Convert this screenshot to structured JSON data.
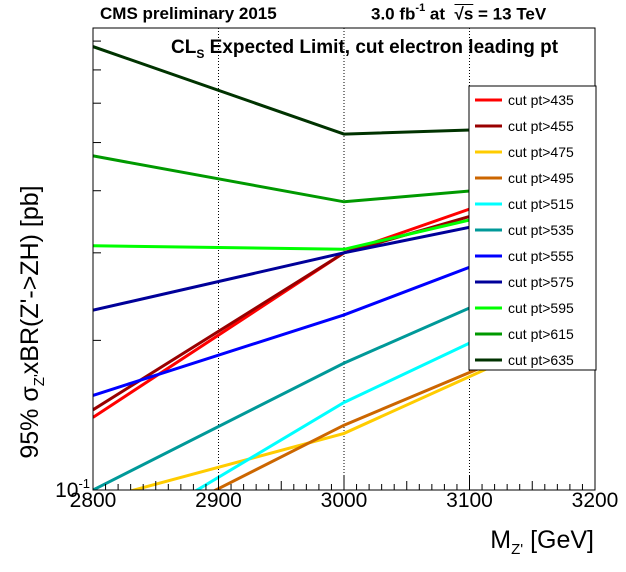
{
  "header": {
    "left": "CMS preliminary 2015",
    "lumi_value": "3.0 fb",
    "lumi_exp": "-1",
    "lumi_at": "at",
    "sqrt_sym": "√s",
    "energy": "= 13 TeV"
  },
  "chart_data": {
    "type": "line",
    "title_pre": "CL",
    "title_sub": "S",
    "title_post": " Expected Limit, cut electron leading pt",
    "xlabel_main": "M",
    "xlabel_sub": "Z'",
    "xlabel_unit": " [GeV]",
    "ylabel_pre": "95% σ",
    "ylabel_sub": "Z'",
    "ylabel_post": "xBR(Z'->ZH) [pb]",
    "xlim": [
      2800,
      3200
    ],
    "x_ticks": [
      2800,
      2900,
      3000,
      3100,
      3200
    ],
    "y_scale": "log",
    "ylim": [
      0.1,
      0.85
    ],
    "y_tick_label_base": "10",
    "y_tick_label_exp": "-1",
    "grid": "vertical dotted",
    "legend_position": "right",
    "x": [
      2800,
      3000,
      3200
    ],
    "series": [
      {
        "name": "cut pt>435",
        "color": "#ff0000",
        "values": [
          0.14,
          0.3,
          0.45
        ]
      },
      {
        "name": "cut pt>455",
        "color": "#990000",
        "values": [
          0.145,
          0.3,
          0.42
        ]
      },
      {
        "name": "cut pt>475",
        "color": "#ffcc00",
        "values": [
          0.095,
          0.13,
          0.22
        ]
      },
      {
        "name": "cut pt>495",
        "color": "#cc6600",
        "values": [
          0.075,
          0.135,
          0.22
        ]
      },
      {
        "name": "cut pt>515",
        "color": "#00ffff",
        "values": [
          0.075,
          0.15,
          0.26
        ]
      },
      {
        "name": "cut pt>535",
        "color": "#009999",
        "values": [
          0.1,
          0.18,
          0.3
        ]
      },
      {
        "name": "cut pt>555",
        "color": "#0000ff",
        "values": [
          0.155,
          0.225,
          0.35
        ]
      },
      {
        "name": "cut pt>575",
        "color": "#000099",
        "values": [
          0.23,
          0.3,
          0.38
        ]
      },
      {
        "name": "cut pt>595",
        "color": "#00ff00",
        "values": [
          0.31,
          0.305,
          0.4
        ]
      },
      {
        "name": "cut pt>615",
        "color": "#009900",
        "values": [
          0.47,
          0.38,
          0.42
        ]
      },
      {
        "name": "cut pt>635",
        "color": "#003300",
        "values": [
          0.78,
          0.52,
          0.54
        ]
      }
    ]
  }
}
